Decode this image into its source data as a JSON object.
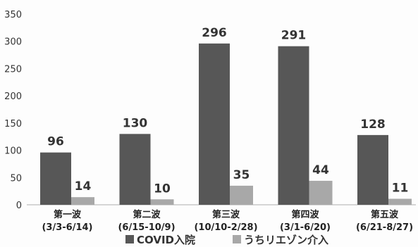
{
  "chart_data": {
    "type": "bar",
    "categories": [
      "第一波",
      "第二波",
      "第三波",
      "第四波",
      "第五波"
    ],
    "category_periods": [
      "(3/3-6/14)",
      "(6/15-10/9)",
      "(10/10-2/28)",
      "(3/1-6/20)",
      "(6/21-8/27)"
    ],
    "series": [
      {
        "name": "COVID入院",
        "values": [
          96,
          130,
          296,
          291,
          128
        ],
        "color": "#575757"
      },
      {
        "name": "うちリエゾン介入",
        "values": [
          14,
          10,
          35,
          44,
          11
        ],
        "color": "#a8a8a8"
      }
    ],
    "ylim": [
      0,
      350
    ],
    "yticks": [
      0,
      50,
      100,
      150,
      200,
      250,
      300,
      350
    ],
    "grid": false,
    "legend": "bottom"
  }
}
